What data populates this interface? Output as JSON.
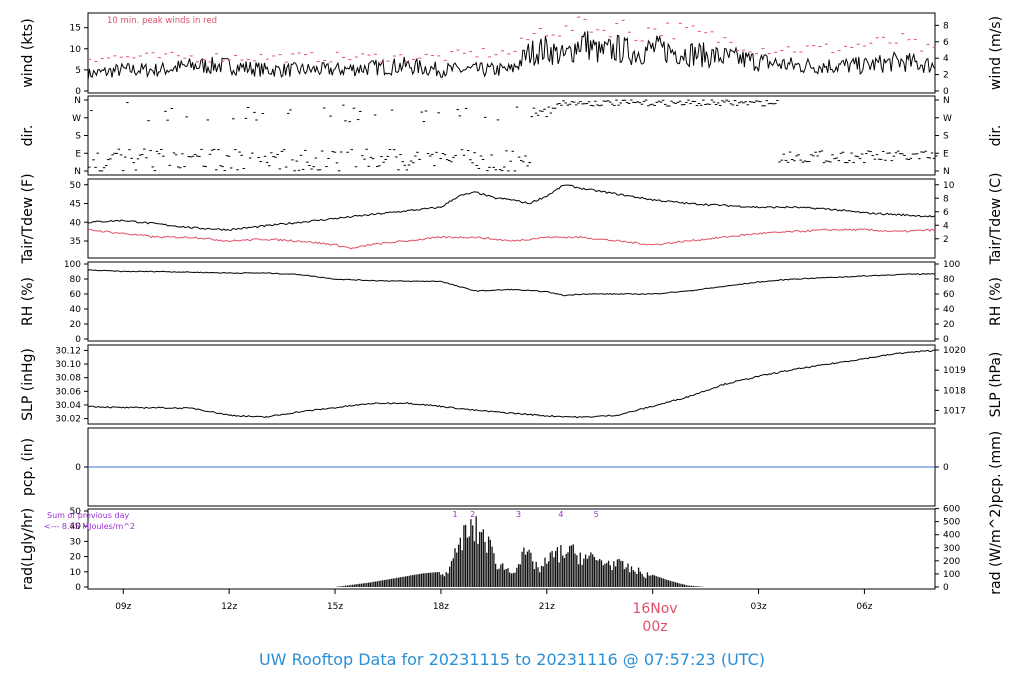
{
  "title": "UW Rooftop Data for 20231115  to  20231116 @ 07:57:23  (UTC)",
  "annotations": {
    "wind_note": "10 min. peak winds in red",
    "rad_note_1": "Sum of previous day",
    "rad_note_2": "<--- 8.75 MJoules/m^2",
    "rad_markers": [
      "1",
      "2",
      "3",
      "4",
      "5"
    ],
    "date_label": "16Nov",
    "date_sublabel": "00z"
  },
  "colors": {
    "primary": "#000000",
    "dewpoint": "#e0506a",
    "peak_wind": "#e0506a",
    "precip": "#3a6fd8",
    "rad_text": "#9b2fd0",
    "footer": "#2b8fd6"
  },
  "chart_data": {
    "type": "line",
    "x_ticks": [
      "09z",
      "12z",
      "15z",
      "18z",
      "21z",
      "03z",
      "06z"
    ],
    "x_range_hours": [
      8,
      32
    ],
    "panels": [
      {
        "id": "wind",
        "ylabel_left": "wind (kts)",
        "ylabel_right": "wind (m/s)",
        "ylim": [
          0,
          18
        ],
        "yticks_left": [
          "0",
          "5",
          "10",
          "15"
        ],
        "yticks_right": [
          "0",
          "2",
          "4",
          "6",
          "8"
        ],
        "series": [
          {
            "name": "wind",
            "x": [
              8,
              9,
              10,
              11,
              12,
              13,
              14,
              15,
              16,
              17,
              18,
              19,
              20,
              20.5,
              21,
              21.5,
              22,
              22.5,
              23,
              23.5,
              24,
              25,
              26,
              27,
              28,
              29,
              30,
              31,
              32
            ],
            "values": [
              4,
              5,
              5,
              6,
              6,
              5,
              5,
              5,
              5.5,
              6,
              5,
              5,
              5,
              9,
              10,
              8,
              12,
              9,
              10,
              9,
              10,
              9,
              8,
              7,
              6,
              6,
              6,
              7,
              6
            ]
          },
          {
            "name": "10 min. peak winds",
            "x": [
              8,
              10,
              12,
              14,
              16,
              18,
              19,
              20,
              20.5,
              21,
              21.5,
              22,
              22.5,
              23,
              23.5,
              24,
              25,
              26,
              27,
              28,
              29,
              30,
              31,
              32
            ],
            "values": [
              8,
              8,
              8,
              8,
              8,
              8,
              9,
              9,
              13,
              15,
              14,
              17,
              14,
              16,
              13,
              15,
              14,
              12,
              10,
              10,
              10,
              11,
              12,
              9
            ]
          }
        ]
      },
      {
        "id": "dir",
        "ylabel_left": "dir.",
        "ylabel_right": "dir.",
        "yticks_left": [
          "N",
          "W",
          "S",
          "E",
          "N"
        ],
        "yticks_right": [
          "N",
          "W",
          "S",
          "E",
          "N"
        ]
      },
      {
        "id": "temp",
        "ylabel_left": "Tair/Tdew (F)",
        "ylabel_right": "Tair/Tdew (C)",
        "ylim": [
          31,
          51
        ],
        "yticks_left": [
          "35",
          "40",
          "45",
          "50"
        ],
        "yticks_right": [
          "2",
          "4",
          "6",
          "8",
          "10"
        ],
        "series": [
          {
            "name": "Tair",
            "x": [
              8,
              9,
              10,
              11,
              12,
              13,
              14,
              15,
              16,
              17,
              18,
              18.5,
              19,
              19.5,
              20,
              20.5,
              21,
              21.5,
              22,
              23,
              24,
              25,
              26,
              27,
              28,
              29,
              30,
              31,
              32
            ],
            "values": [
              40,
              40.5,
              39.5,
              38.5,
              38,
              39,
              40,
              41,
              42,
              43,
              44,
              47,
              48,
              46.5,
              46,
              45,
              47,
              50,
              49,
              47.5,
              46,
              45,
              44.5,
              44,
              44,
              43.5,
              42.5,
              42,
              41.5
            ]
          },
          {
            "name": "Tdew",
            "x": [
              8,
              9,
              10,
              11,
              12,
              13,
              14,
              15,
              15.5,
              16,
              17,
              18,
              19,
              20,
              21,
              22,
              23,
              24,
              25,
              26,
              27,
              28,
              29,
              30,
              31,
              32
            ],
            "values": [
              38,
              37,
              36,
              36,
              35,
              35.5,
              35,
              34,
              33,
              34,
              35,
              36,
              36,
              35,
              36,
              36,
              35,
              34,
              35,
              36,
              37,
              37.5,
              38,
              38,
              37.5,
              38
            ]
          }
        ]
      },
      {
        "id": "rh",
        "ylabel_left": "RH (%)",
        "ylabel_right": "RH (%)",
        "ylim": [
          0,
          100
        ],
        "yticks_left": [
          "0",
          "20",
          "40",
          "60",
          "80",
          "100"
        ],
        "yticks_right": [
          "0",
          "20",
          "40",
          "60",
          "80",
          "100"
        ],
        "series": [
          {
            "name": "RH",
            "x": [
              8,
              9,
              10,
              11,
              12,
              13,
              14,
              15,
              16,
              17,
              18,
              18.5,
              19,
              20,
              21,
              21.5,
              22,
              23,
              24,
              25,
              26,
              27,
              28,
              29,
              30,
              31,
              32
            ],
            "values": [
              92,
              90,
              90,
              89,
              88,
              88,
              86,
              80,
              78,
              77,
              77,
              70,
              64,
              66,
              63,
              58,
              60,
              60,
              60,
              64,
              70,
              76,
              80,
              82,
              84,
              86,
              87
            ]
          }
        ]
      },
      {
        "id": "slp",
        "ylabel_left": "SLP (inHg)",
        "ylabel_right": "SLP (hPa)",
        "ylim": [
          30.015,
          30.125
        ],
        "yticks_left": [
          "30.02",
          "30.04",
          "30.06",
          "30.08",
          "30.10",
          "30.12"
        ],
        "yticks_right": [
          "1017",
          "1018",
          "1019",
          "1020"
        ],
        "series": [
          {
            "name": "SLP",
            "x": [
              8,
              9,
              10,
              11,
              12,
              13,
              14,
              15,
              16,
              17,
              18,
              19,
              20,
              21,
              22,
              23,
              24,
              25,
              26,
              27,
              28,
              29,
              30,
              31,
              32
            ],
            "values": [
              30.038,
              30.036,
              30.036,
              30.035,
              30.025,
              30.022,
              30.03,
              30.036,
              30.042,
              30.043,
              30.038,
              30.032,
              30.028,
              30.024,
              30.022,
              30.025,
              30.038,
              30.052,
              30.07,
              30.082,
              30.092,
              30.1,
              30.108,
              30.116,
              30.12
            ]
          }
        ]
      },
      {
        "id": "pcp",
        "ylabel_left": "pcp. (in)",
        "ylabel_right": "pcp. (mm)",
        "yticks_left": [
          "0"
        ],
        "yticks_right": [
          "0"
        ]
      },
      {
        "id": "rad",
        "ylabel_left": "rad(Lgly/hr)",
        "ylabel_right": "rad (W/m^2)",
        "ylim": [
          0,
          50
        ],
        "yticks_left": [
          "0",
          "10",
          "20",
          "30",
          "40",
          "50"
        ],
        "yticks_right": [
          "0",
          "100",
          "200",
          "300",
          "400",
          "500",
          "600"
        ],
        "series": [
          {
            "name": "rad",
            "x": [
              15,
              16,
              17,
              17.5,
              18,
              18.3,
              18.6,
              18.9,
              19.2,
              19.6,
              20,
              20.4,
              20.8,
              21.2,
              21.6,
              22,
              22.5,
              23,
              23.5,
              24,
              24.5,
              25,
              25.5
            ],
            "values": [
              0,
              3,
              7,
              9,
              10,
              18,
              42,
              48,
              45,
              20,
              13,
              28,
              15,
              27,
              30,
              26,
              22,
              19,
              14,
              8,
              4,
              1,
              0
            ]
          }
        ]
      }
    ]
  }
}
